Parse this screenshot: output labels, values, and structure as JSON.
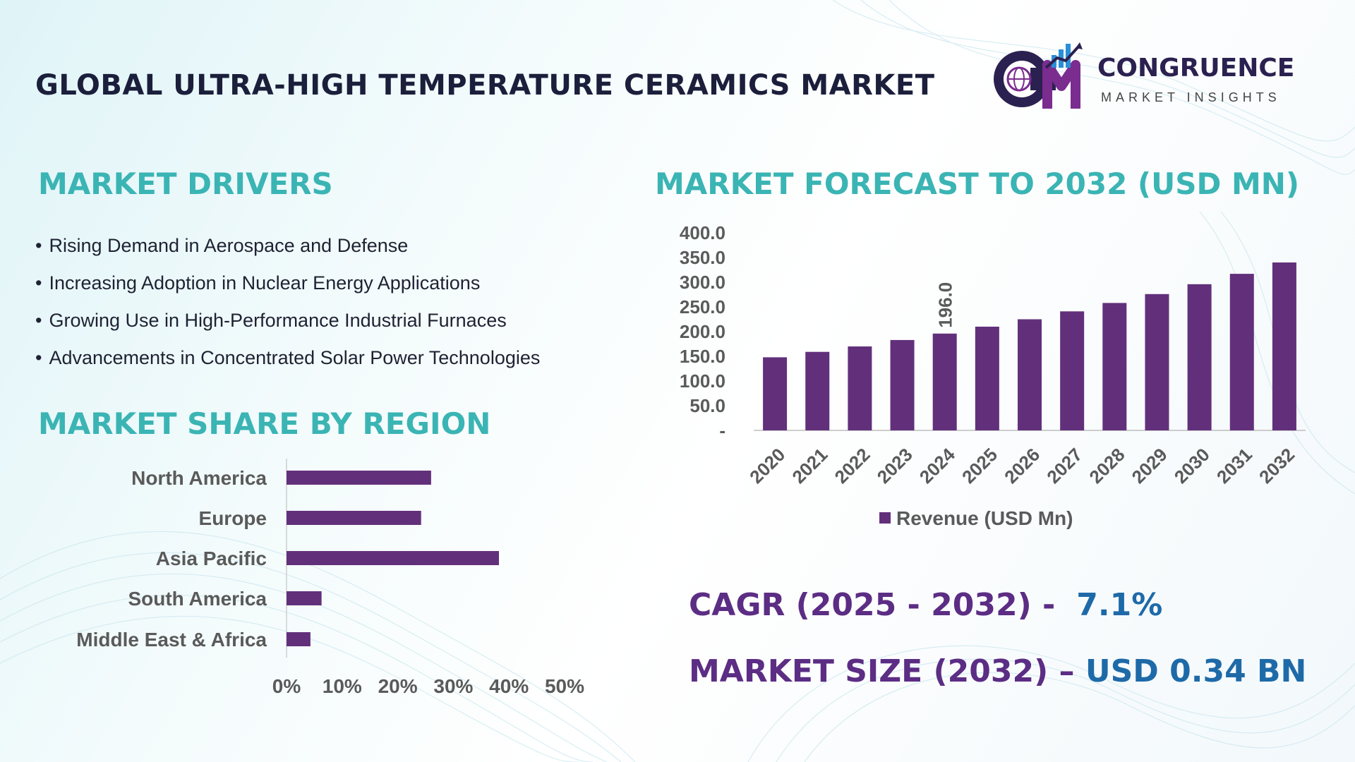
{
  "header": {
    "title": "GLOBAL ULTRA-HIGH TEMPERATURE CERAMICS MARKET",
    "logo": {
      "brand": "CONGRUENCE",
      "tagline": "MARKET INSIGHTS",
      "icon": "globe-bar-chart-logo-icon",
      "colors": {
        "dark": "#2b2150",
        "accent": "#7a2c8f",
        "highlight": "#2a8fd6"
      }
    }
  },
  "drivers": {
    "title": "MARKET DRIVERS",
    "items": [
      "Rising Demand in Aerospace and Defense",
      "Increasing Adoption in Nuclear Energy Applications",
      "Growing Use in High-Performance Industrial Furnaces",
      "Advancements in Concentrated Solar Power Technologies"
    ]
  },
  "region": {
    "title": "MARKET SHARE BY REGION"
  },
  "forecast": {
    "title": "MARKET FORECAST TO 2032 (USD MN)"
  },
  "kpis": {
    "cagr_label": "CAGR (2025 - 2032) -",
    "cagr_value": "7.1%",
    "size_label": "MARKET SIZE (2032) –",
    "size_value": "USD 0.34 BN"
  },
  "colors": {
    "bar": "#62307b",
    "section_title": "#3bb4b4",
    "kpi_label": "#5c2d84",
    "kpi_value": "#1e6aa8",
    "title": "#1b1f3b"
  },
  "chart_data": [
    {
      "type": "bar",
      "orientation": "vertical",
      "categories": [
        "2020",
        "2021",
        "2022",
        "2023",
        "2024",
        "2025",
        "2026",
        "2027",
        "2028",
        "2029",
        "2030",
        "2031",
        "2032"
      ],
      "series": [
        {
          "name": "Revenue (USD Mn)",
          "values": [
            148,
            159,
            170,
            183,
            196,
            210,
            225,
            241,
            258,
            276,
            296,
            317,
            340
          ]
        }
      ],
      "y_ticks": [
        "-",
        "50.0",
        "100.0",
        "150.0",
        "200.0",
        "250.0",
        "300.0",
        "350.0",
        "400.0"
      ],
      "ylim": [
        0,
        400
      ],
      "data_labels": [
        {
          "category": "2024",
          "text": "196.0"
        }
      ],
      "legend": "bottom",
      "grid": false
    },
    {
      "type": "bar",
      "orientation": "horizontal",
      "categories": [
        "North America",
        "Europe",
        "Asia Pacific",
        "South America",
        "Middle East & Africa"
      ],
      "values": [
        26,
        24.2,
        38.2,
        6.3,
        4.3
      ],
      "x_ticks": [
        "0%",
        "10%",
        "20%",
        "30%",
        "40%",
        "50%"
      ],
      "xlim": [
        0,
        50
      ],
      "grid": false
    }
  ]
}
